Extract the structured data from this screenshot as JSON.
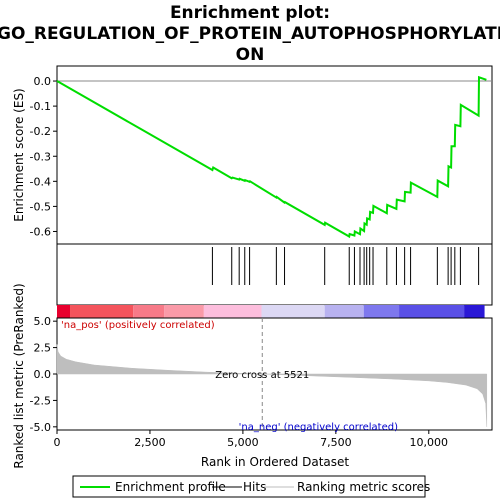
{
  "title_line1": "Enrichment plot:",
  "title_line2": "GO_REGULATION_OF_PROTEIN_AUTOPHOSPHORYLATI",
  "title_line3": "ON",
  "colors": {
    "enrichment": "#00dd00",
    "hits": "#000000",
    "ranking": "#bebebe",
    "pos_label": "#cc0000",
    "neg_label": "#0000cc"
  },
  "chart_data": [
    {
      "type": "line",
      "title": "Enrichment plot: GO_REGULATION_OF_PROTEIN_AUTOPHOSPHORYLATION",
      "ylabel": "Enrichment score (ES)",
      "xlim": [
        0,
        11700
      ],
      "ylim": [
        -0.65,
        0.06
      ],
      "yticks": [
        0.0,
        -0.1,
        -0.2,
        -0.3,
        -0.4,
        -0.5,
        -0.6
      ],
      "ytick_labels": [
        "0.0",
        "-0.1",
        "-0.2",
        "-0.3",
        "-0.4",
        "-0.5",
        "-0.6"
      ],
      "series": [
        {
          "name": "Enrichment profile",
          "x": [
            0,
            4180,
            4200,
            4700,
            4720,
            4900,
            4910,
            5050,
            5060,
            5180,
            5190,
            5900,
            5910,
            6120,
            6130,
            7200,
            7210,
            7860,
            7870,
            8000,
            8010,
            8150,
            8160,
            8260,
            8270,
            8330,
            8340,
            8410,
            8420,
            8500,
            8510,
            8870,
            8880,
            9130,
            9140,
            9350,
            9360,
            9510,
            9520,
            10230,
            10240,
            10520,
            10530,
            10600,
            10610,
            10700,
            10710,
            10850,
            10860,
            11340,
            11350,
            11550
          ],
          "y": [
            0.0,
            -0.355,
            -0.345,
            -0.388,
            -0.385,
            -0.393,
            -0.39,
            -0.398,
            -0.395,
            -0.402,
            -0.4,
            -0.465,
            -0.462,
            -0.485,
            -0.483,
            -0.574,
            -0.565,
            -0.62,
            -0.61,
            -0.616,
            -0.6,
            -0.611,
            -0.588,
            -0.598,
            -0.568,
            -0.573,
            -0.548,
            -0.552,
            -0.522,
            -0.526,
            -0.498,
            -0.527,
            -0.494,
            -0.51,
            -0.473,
            -0.48,
            -0.442,
            -0.445,
            -0.405,
            -0.462,
            -0.397,
            -0.42,
            -0.34,
            -0.345,
            -0.26,
            -0.26,
            -0.175,
            -0.18,
            -0.095,
            -0.138,
            0.015,
            0.005
          ]
        }
      ],
      "hits_x": [
        4180,
        4700,
        4900,
        5050,
        5180,
        5900,
        6120,
        7200,
        7860,
        8000,
        8150,
        8260,
        8330,
        8410,
        8500,
        8870,
        9130,
        9350,
        9510,
        10230,
        10520,
        10600,
        10700,
        10850,
        11340
      ],
      "ranking": {
        "ylabel": "Ranked list metric (PreRanked)",
        "xlabel": "Rank in Ordered Dataset",
        "xlim": [
          0,
          11700
        ],
        "ylim": [
          -5.3,
          5.3
        ],
        "xticks": [
          0,
          2500,
          5000,
          7500,
          10000
        ],
        "xtick_labels": [
          "0",
          "2,500",
          "5,000",
          "7,500",
          "10,000"
        ],
        "yticks": [
          5.0,
          2.5,
          0.0,
          -2.5,
          -5.0
        ],
        "ytick_labels": [
          "5.0",
          "2.5",
          "0.0",
          "-2.5",
          "-5.0"
        ],
        "curve_x": [
          0,
          30,
          100,
          250,
          500,
          1000,
          2000,
          3000,
          4000,
          5000,
          5521,
          6000,
          7000,
          8000,
          9000,
          10000,
          10500,
          11000,
          11300,
          11450,
          11530,
          11560
        ],
        "curve_y": [
          2.8,
          2.1,
          1.7,
          1.4,
          1.15,
          0.85,
          0.55,
          0.35,
          0.18,
          0.06,
          0.0,
          -0.07,
          -0.2,
          -0.33,
          -0.47,
          -0.65,
          -0.8,
          -1.05,
          -1.4,
          -1.9,
          -2.8,
          -5.0
        ],
        "zero_cross": 5521,
        "zero_cross_label": "Zero cross at 5521",
        "pos_label": "'na_pos' (positively correlated)",
        "neg_label": "'na_neg' (negatively correlated)"
      },
      "heatbar": [
        {
          "from": 0,
          "to": 350,
          "color": "#e8002e"
        },
        {
          "from": 350,
          "to": 2050,
          "color": "#f4545c"
        },
        {
          "from": 2050,
          "to": 2880,
          "color": "#f77a88"
        },
        {
          "from": 2880,
          "to": 3950,
          "color": "#fa9aa8"
        },
        {
          "from": 3950,
          "to": 5500,
          "color": "#fdbedd"
        },
        {
          "from": 5500,
          "to": 7200,
          "color": "#dcd8f4"
        },
        {
          "from": 7200,
          "to": 8250,
          "color": "#b8b2f0"
        },
        {
          "from": 8250,
          "to": 9200,
          "color": "#7e78ee"
        },
        {
          "from": 9200,
          "to": 10950,
          "color": "#5a50e6"
        },
        {
          "from": 10950,
          "to": 11500,
          "color": "#2a18d6"
        }
      ],
      "legend": [
        {
          "label": "Enrichment profile",
          "kind": "line",
          "color": "#00dd00"
        },
        {
          "label": "Hits",
          "kind": "line",
          "color": "#000000"
        },
        {
          "label": "Ranking metric scores",
          "kind": "line",
          "color": "#bebebe"
        }
      ],
      "legend_position": "bottom"
    }
  ]
}
